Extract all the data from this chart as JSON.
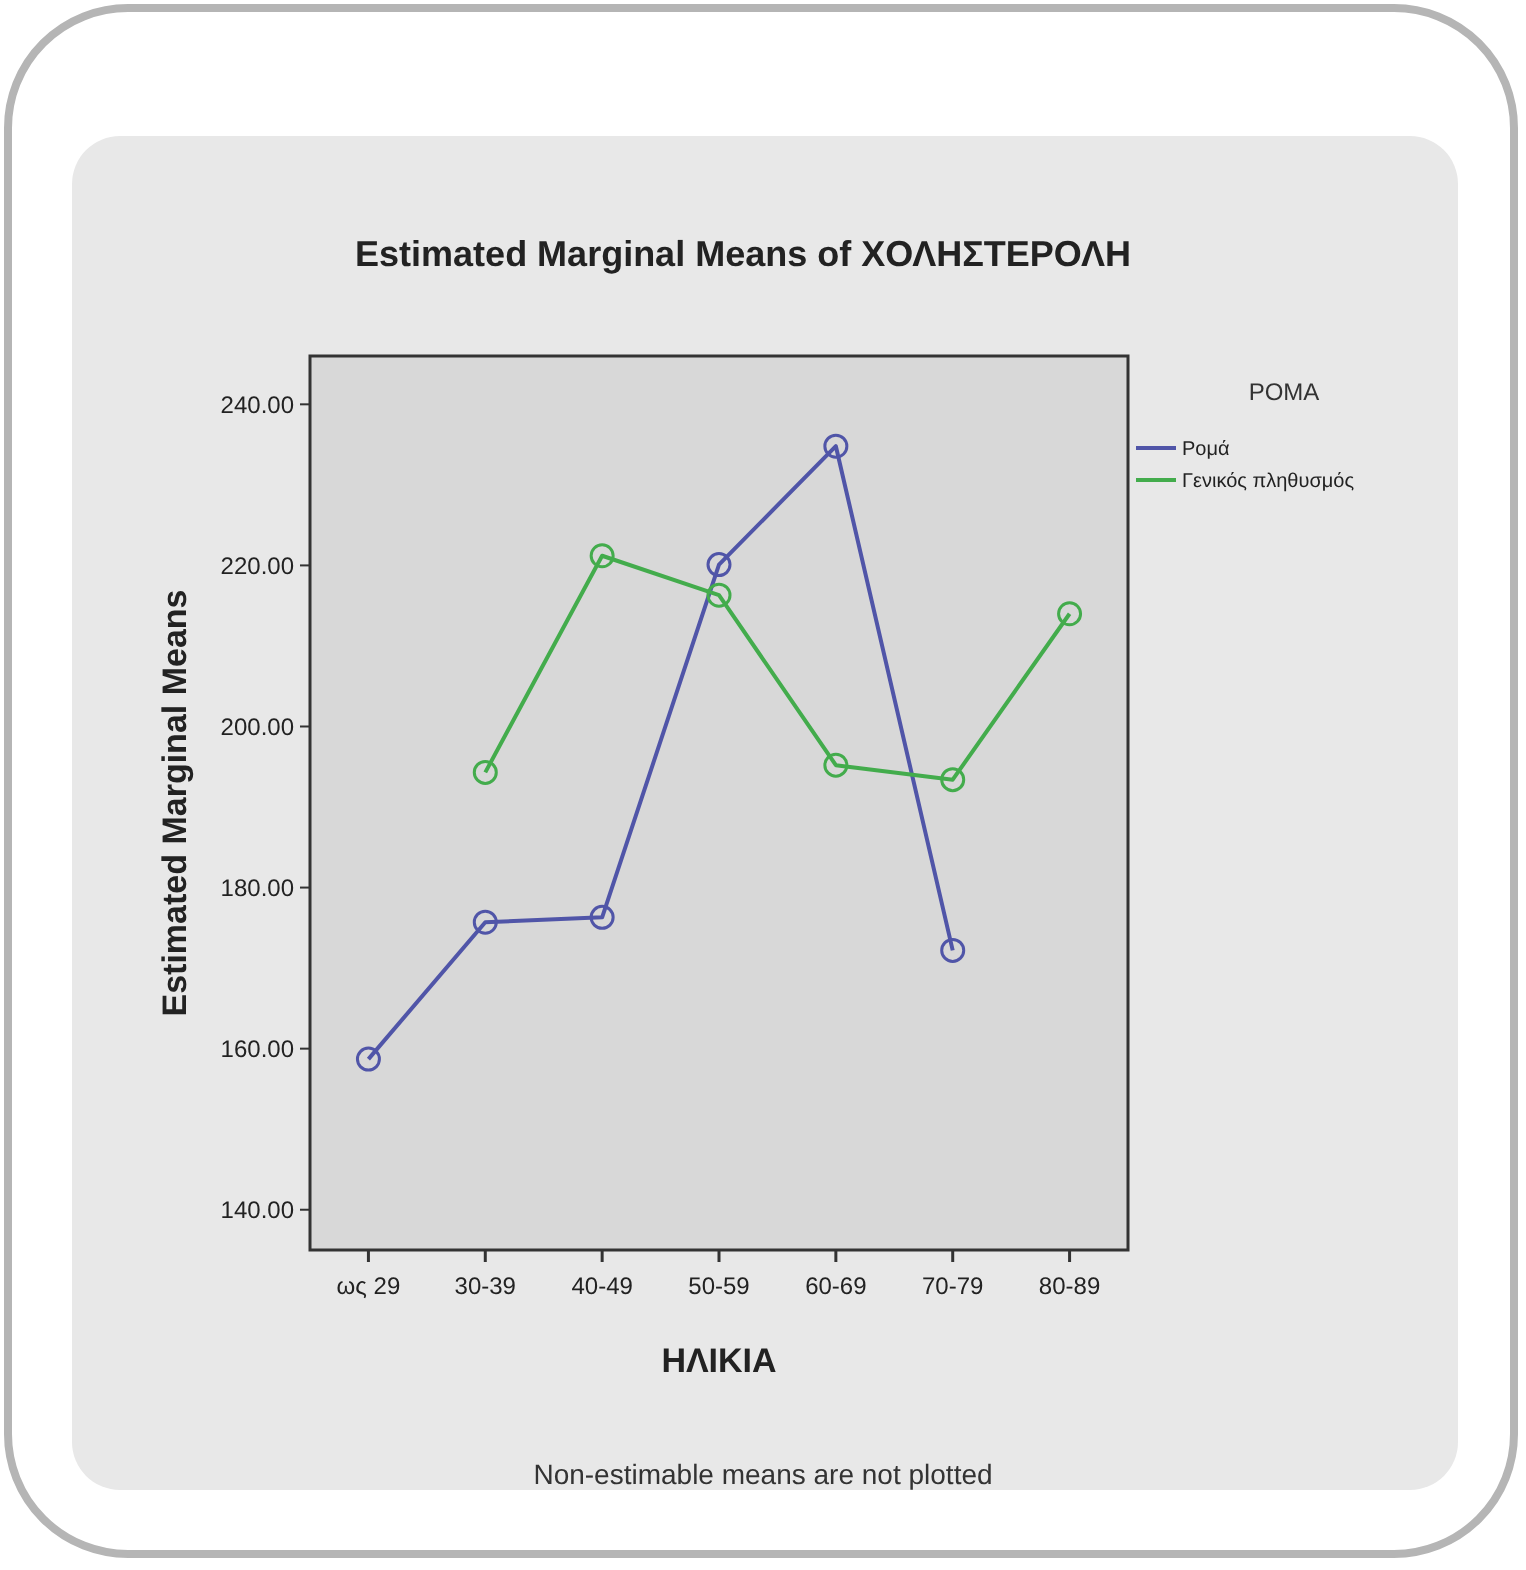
{
  "chart_data": {
    "type": "line",
    "title": "Estimated Marginal Means of ΧΟΛΗΣΤΕΡΟΛΗ",
    "xlabel": "ΗΛΙΚΙΑ",
    "ylabel": "Estimated Marginal Means",
    "legend_title": "ΡΟΜΑ",
    "categories": [
      "ως 29",
      "30-39",
      "40-49",
      "50-59",
      "60-69",
      "70-79",
      "80-89"
    ],
    "series": [
      {
        "name": "Ρομά",
        "color": "#5055a8",
        "values": [
          158.7,
          175.7,
          176.3,
          220.1,
          234.8,
          172.2,
          null
        ]
      },
      {
        "name": "Γενικός πληθυσμός",
        "color": "#43ac4c",
        "values": [
          null,
          194.3,
          221.2,
          216.3,
          195.2,
          193.4,
          214
        ]
      }
    ],
    "ylim": [
      135,
      246
    ],
    "yticks": [
      {
        "value": 140,
        "label": "140.00"
      },
      {
        "value": 160,
        "label": "160.00"
      },
      {
        "value": 180,
        "label": "180.00"
      },
      {
        "value": 200,
        "label": "200.00"
      },
      {
        "value": 220,
        "label": "220.00"
      },
      {
        "value": 240,
        "label": "240.00"
      }
    ],
    "marker": "circle",
    "legend": "top right",
    "grid": false,
    "annotations": [
      "Non-estimable means are not plotted"
    ]
  }
}
